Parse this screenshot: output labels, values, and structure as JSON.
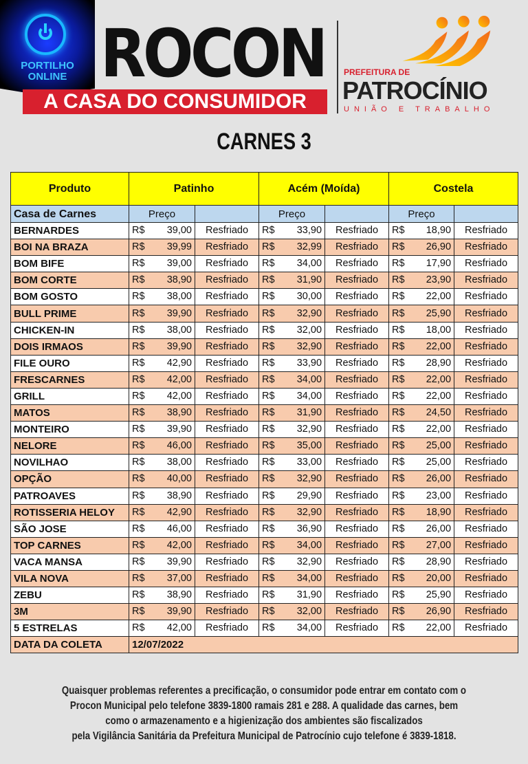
{
  "header": {
    "portal_logo": "PORTILHO ONLINE",
    "procon_logo": "ROCON",
    "procon_tagline": "A CASA DO CONSUMIDOR",
    "prefeitura_small": "PREFEITURA DE",
    "prefeitura_name": "PATROCÍNIO",
    "prefeitura_motto": "UNIÃO E TRABALHO"
  },
  "title": "CARNES 3",
  "table": {
    "headers": [
      "Produto",
      "Patinho",
      "Acém (Moída)",
      "Costela"
    ],
    "subheaders": {
      "store": "Casa de Carnes",
      "price": "Preço"
    },
    "currency": "R$",
    "rows": [
      {
        "store": "BERNARDES",
        "patinho": "39,00",
        "acem": "33,90",
        "costela": "18,90",
        "state": "Resfriado"
      },
      {
        "store": "BOI NA BRAZA",
        "patinho": "39,99",
        "acem": "32,99",
        "costela": "26,90",
        "state": "Resfriado"
      },
      {
        "store": "BOM BIFE",
        "patinho": "39,00",
        "acem": "34,00",
        "costela": "17,90",
        "state": "Resfriado"
      },
      {
        "store": "BOM CORTE",
        "patinho": "38,90",
        "acem": "31,90",
        "costela": "23,90",
        "state": "Resfriado"
      },
      {
        "store": "BOM GOSTO",
        "patinho": "38,00",
        "acem": "30,00",
        "costela": "22,00",
        "state": "Resfriado"
      },
      {
        "store": "BULL PRIME",
        "patinho": "39,90",
        "acem": "32,90",
        "costela": "25,90",
        "state": "Resfriado"
      },
      {
        "store": "CHICKEN-IN",
        "patinho": "38,00",
        "acem": "32,00",
        "costela": "18,00",
        "state": "Resfriado"
      },
      {
        "store": "DOIS IRMAOS",
        "patinho": "39,90",
        "acem": "32,90",
        "costela": "22,00",
        "state": "Resfriado"
      },
      {
        "store": "FILE OURO",
        "patinho": "42,90",
        "acem": "33,90",
        "costela": "28,90",
        "state": "Resfriado"
      },
      {
        "store": "FRESCARNES",
        "patinho": "42,00",
        "acem": "34,00",
        "costela": "22,00",
        "state": "Resfriado"
      },
      {
        "store": "GRILL",
        "patinho": "42,00",
        "acem": "34,00",
        "costela": "22,00",
        "state": "Resfriado"
      },
      {
        "store": "MATOS",
        "patinho": "38,90",
        "acem": "31,90",
        "costela": "24,50",
        "state": "Resfriado"
      },
      {
        "store": "MONTEIRO",
        "patinho": "39,90",
        "acem": "32,90",
        "costela": "22,00",
        "state": "Resfriado"
      },
      {
        "store": "NELORE",
        "patinho": "46,00",
        "acem": "35,00",
        "costela": "25,00",
        "state": "Resfriado"
      },
      {
        "store": "NOVILHAO",
        "patinho": "38,00",
        "acem": "33,00",
        "costela": "25,00",
        "state": "Resfriado"
      },
      {
        "store": "OPÇÃO",
        "patinho": "40,00",
        "acem": "32,90",
        "costela": "26,00",
        "state": "Resfriado"
      },
      {
        "store": "PATROAVES",
        "patinho": "38,90",
        "acem": "29,90",
        "costela": "23,00",
        "state": "Resfriado"
      },
      {
        "store": "ROTISSERIA HELOY",
        "patinho": "42,90",
        "acem": "32,90",
        "costela": "18,90",
        "state": "Resfriado"
      },
      {
        "store": "SÃO JOSE",
        "patinho": "46,00",
        "acem": "36,90",
        "costela": "26,00",
        "state": "Resfriado"
      },
      {
        "store": "TOP CARNES",
        "patinho": "42,00",
        "acem": "34,00",
        "costela": "27,00",
        "state": "Resfriado"
      },
      {
        "store": "VACA MANSA",
        "patinho": "39,90",
        "acem": "32,90",
        "costela": "28,90",
        "state": "Resfriado"
      },
      {
        "store": "VILA NOVA",
        "patinho": "37,00",
        "acem": "34,00",
        "costela": "20,00",
        "state": "Resfriado"
      },
      {
        "store": "ZEBU",
        "patinho": "38,90",
        "acem": "31,90",
        "costela": "25,90",
        "state": "Resfriado"
      },
      {
        "store": "3M",
        "patinho": "39,90",
        "acem": "32,00",
        "costela": "26,90",
        "state": "Resfriado"
      },
      {
        "store": "5 ESTRELAS",
        "patinho": "42,00",
        "acem": "34,00",
        "costela": "22,00",
        "state": "Resfriado"
      }
    ],
    "date_label": "DATA DA COLETA",
    "date_value": "12/07/2022"
  },
  "footer": {
    "lines": [
      "Quaisquer problemas referentes a precificação, o consumidor pode entrar em contato com o",
      "Procon Municipal  pelo telefone 3839-1800 ramais 281 e 288. A qualidade das carnes, bem",
      "como o armazenamento e a higienização dos ambientes são fiscalizados",
      "pela Vigilância Sanitária da Prefeitura Municipal de Patrocínio cujo telefone é  3839-1818."
    ]
  },
  "colors": {
    "header_yellow": "#ffff00",
    "subheader_blue": "#bdd7ee",
    "row_alt": "#f8cbad",
    "procon_red": "#d8202e"
  }
}
